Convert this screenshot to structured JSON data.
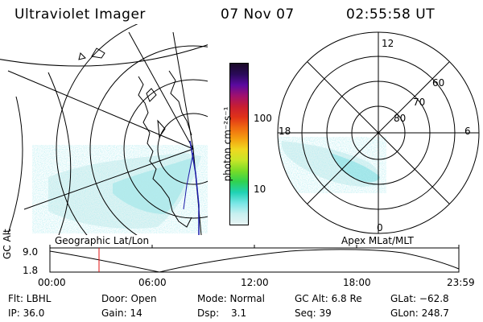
{
  "header": {
    "instrument": "Ultraviolet Imager",
    "date": "07 Nov 07",
    "time": "02:55:58 UT"
  },
  "geo_panel": {
    "label": "Geographic Lat/Lon"
  },
  "polar_panel": {
    "label": "Apex MLat/MLT",
    "mlt_labels": {
      "top": "12",
      "left": "18",
      "right": "6",
      "bottom": "0"
    },
    "lat_labels": [
      "60",
      "70",
      "80"
    ]
  },
  "colorbar": {
    "unit_label": "photon cm⁻²s⁻¹",
    "ticks": [
      "100",
      "10"
    ],
    "colors": [
      "#1a0a26",
      "#2a0a5a",
      "#5a0aa0",
      "#a0106e",
      "#c81e32",
      "#e03218",
      "#f06a10",
      "#f4a010",
      "#f0d820",
      "#c8e628",
      "#78dc28",
      "#30d250",
      "#20d2b4",
      "#78e6e6",
      "#c8f0f0",
      "#e8f4f4"
    ]
  },
  "timeline": {
    "axis_label": "GC Alt",
    "y_ticks": [
      "9.0",
      "1.8"
    ],
    "x_ticks": [
      "00:00",
      "06:00",
      "12:00",
      "18:00",
      "23:59"
    ],
    "marker_color": "#e01010"
  },
  "info": {
    "flt": "Flt: LBHL",
    "ip": "IP: 36.0",
    "door": "Door: Open",
    "gain": "Gain: 14",
    "mode": "Mode: Normal",
    "dsp_label": "Dsp:",
    "dsp_value": "3.1",
    "gcalt": "GC Alt: 6.8 Re",
    "seq": "Seq: 39",
    "glat": "GLat: −62.8",
    "glon": "GLon: 248.7"
  }
}
